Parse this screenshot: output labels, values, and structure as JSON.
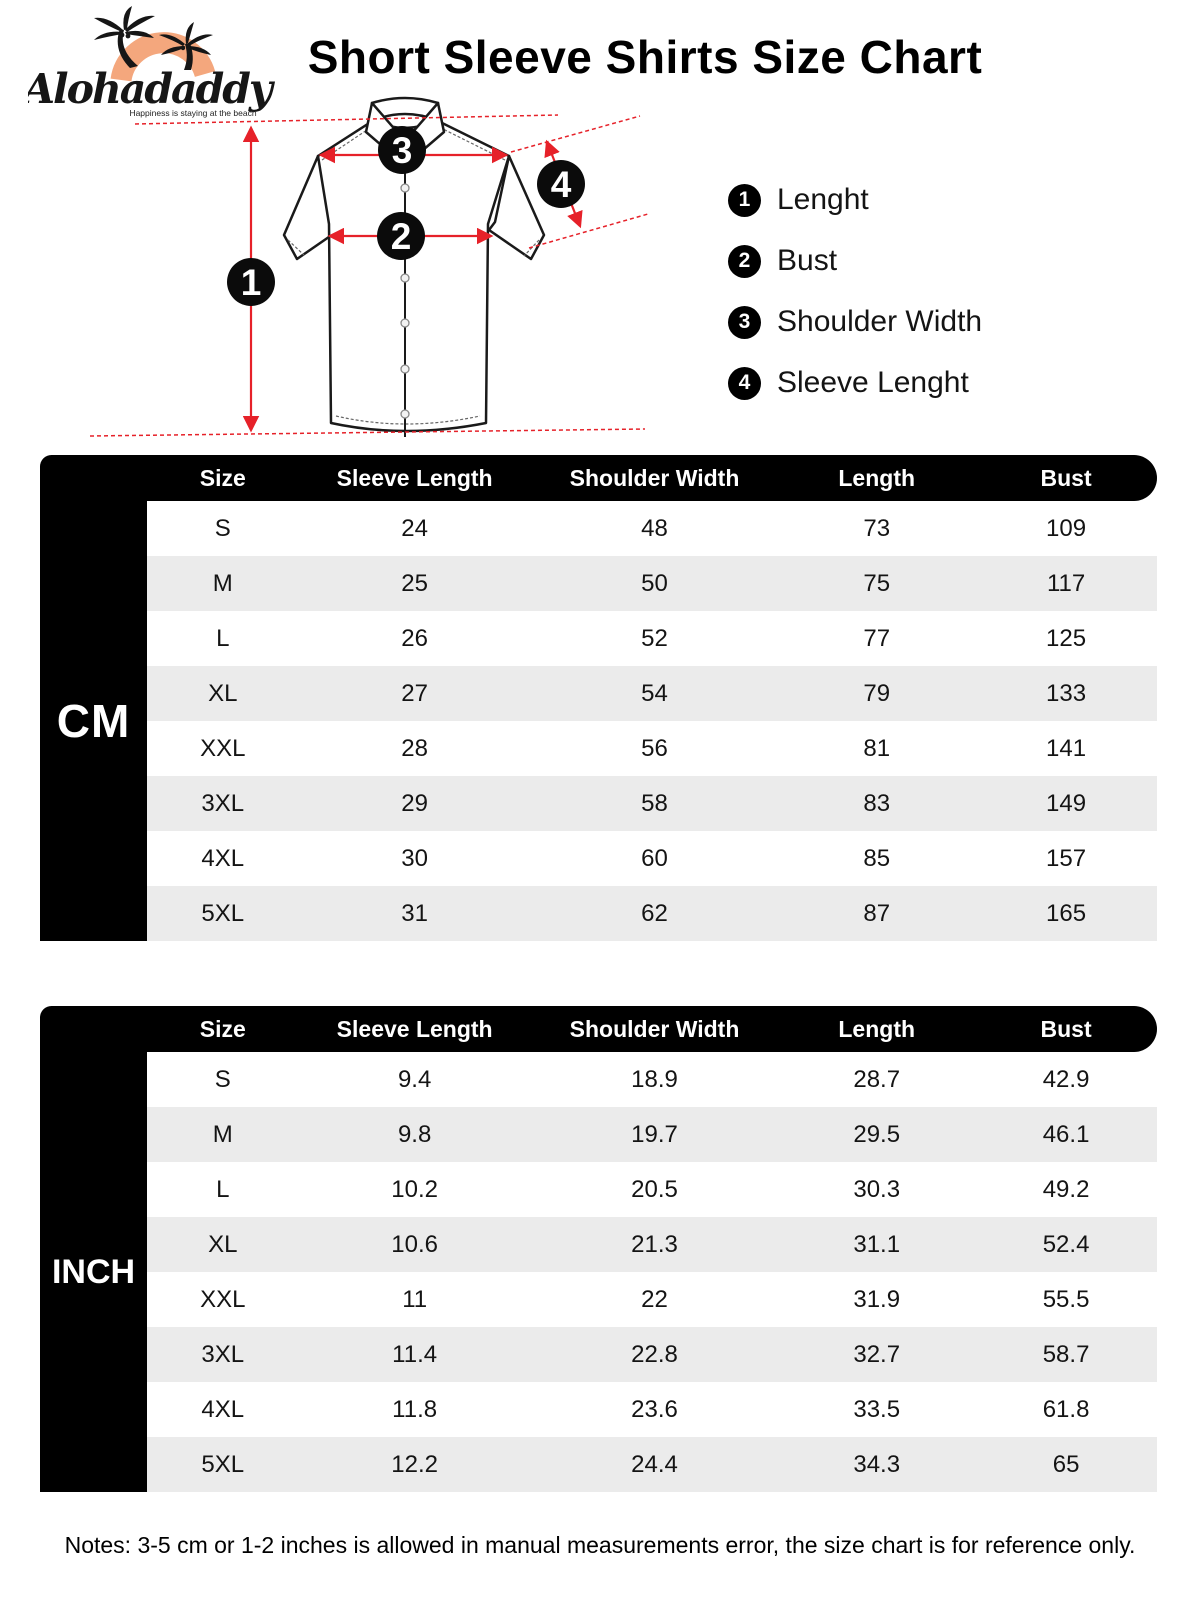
{
  "brand": {
    "name": "Alohadaddy",
    "tagline": "Happiness is staying at the beach"
  },
  "title": "Short Sleeve Shirts Size Chart",
  "legend": [
    {
      "num": "1",
      "label": "Lenght"
    },
    {
      "num": "2",
      "label": "Bust"
    },
    {
      "num": "3",
      "label": "Shoulder Width"
    },
    {
      "num": "4",
      "label": "Sleeve Lenght"
    }
  ],
  "diagram": {
    "badges": [
      "1",
      "2",
      "3",
      "4"
    ]
  },
  "tables": [
    {
      "unit": "CM",
      "headers": [
        "Size",
        "Sleeve Length",
        "Shoulder Width",
        "Length",
        "Bust"
      ],
      "rows": [
        [
          "S",
          "24",
          "48",
          "73",
          "109"
        ],
        [
          "M",
          "25",
          "50",
          "75",
          "117"
        ],
        [
          "L",
          "26",
          "52",
          "77",
          "125"
        ],
        [
          "XL",
          "27",
          "54",
          "79",
          "133"
        ],
        [
          "XXL",
          "28",
          "56",
          "81",
          "141"
        ],
        [
          "3XL",
          "29",
          "58",
          "83",
          "149"
        ],
        [
          "4XL",
          "30",
          "60",
          "85",
          "157"
        ],
        [
          "5XL",
          "31",
          "62",
          "87",
          "165"
        ]
      ]
    },
    {
      "unit": "INCH",
      "headers": [
        "Size",
        "Sleeve Length",
        "Shoulder Width",
        "Length",
        "Bust"
      ],
      "rows": [
        [
          "S",
          "9.4",
          "18.9",
          "28.7",
          "42.9"
        ],
        [
          "M",
          "9.8",
          "19.7",
          "29.5",
          "46.1"
        ],
        [
          "L",
          "10.2",
          "20.5",
          "30.3",
          "49.2"
        ],
        [
          "XL",
          "10.6",
          "21.3",
          "31.1",
          "52.4"
        ],
        [
          "XXL",
          "11",
          "22",
          "31.9",
          "55.5"
        ],
        [
          "3XL",
          "11.4",
          "22.8",
          "32.7",
          "58.7"
        ],
        [
          "4XL",
          "11.8",
          "23.6",
          "33.5",
          "61.8"
        ],
        [
          "5XL",
          "12.2",
          "24.4",
          "34.3",
          "65"
        ]
      ]
    }
  ],
  "notes": "Notes: 3-5 cm or 1-2 inches is allowed in manual measurements error, the size chart is for reference only.",
  "colors": {
    "accent_red": "#e62129",
    "row_alt": "#ebebeb",
    "logo_sun": "#f4a77d",
    "black": "#000000"
  }
}
